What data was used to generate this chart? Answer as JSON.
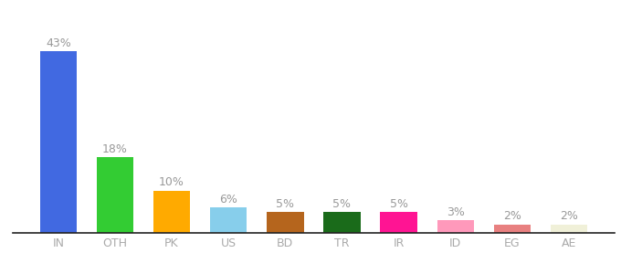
{
  "categories": [
    "IN",
    "OTH",
    "PK",
    "US",
    "BD",
    "TR",
    "IR",
    "ID",
    "EG",
    "AE"
  ],
  "values": [
    43,
    18,
    10,
    6,
    5,
    5,
    5,
    3,
    2,
    2
  ],
  "bar_colors": [
    "#4169e1",
    "#33cc33",
    "#ffaa00",
    "#87ceeb",
    "#b5651d",
    "#1a6b1a",
    "#ff1493",
    "#ff99bb",
    "#e88080",
    "#f0f0d8"
  ],
  "labels": [
    "43%",
    "18%",
    "10%",
    "6%",
    "5%",
    "5%",
    "5%",
    "3%",
    "2%",
    "2%"
  ],
  "ylim": [
    0,
    50
  ],
  "background_color": "#ffffff",
  "label_fontsize": 9,
  "tick_fontsize": 9,
  "label_color": "#999999",
  "tick_color": "#aaaaaa"
}
